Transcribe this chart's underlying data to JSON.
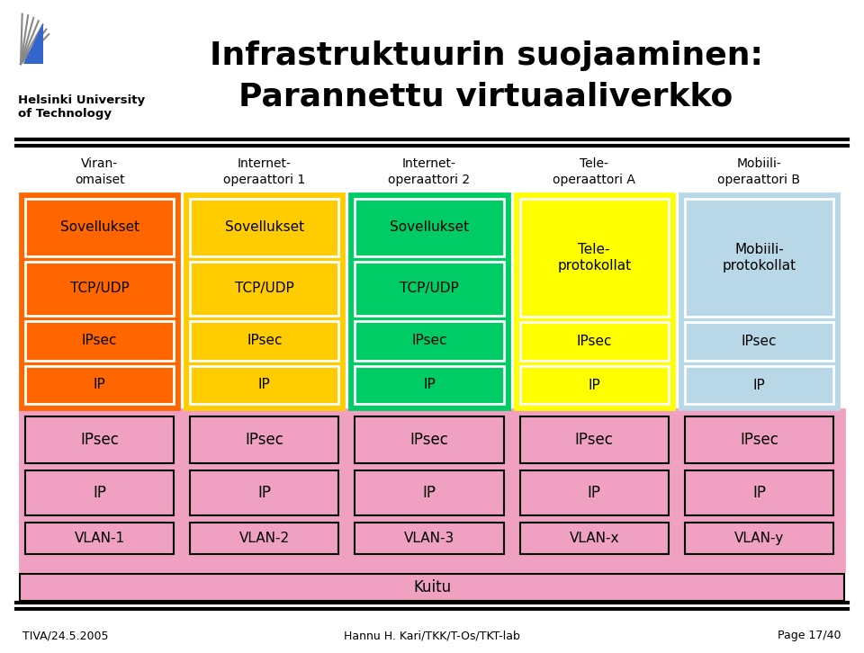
{
  "title_line1": "Infrastruktuurin suojaaminen:",
  "title_line2": "Parannettu virtuaaliverkko",
  "footer_left": "TIVA/24.5.2005",
  "footer_center": "Hannu H. Kari/TKK/T-Os/TKT-lab",
  "footer_right": "Page 17/40",
  "uni_name_line1": "Helsinki University",
  "uni_name_line2": "of Technology",
  "columns": [
    {
      "header_line1": "Viran-",
      "header_line2": "omaiset",
      "bg_color": "#FF6600",
      "rows": [
        "Sovellukset",
        "TCP/UDP",
        "IPsec",
        "IP"
      ],
      "row_count": 4
    },
    {
      "header_line1": "Internet-",
      "header_line2": "operaattori 1",
      "bg_color": "#FFCC00",
      "rows": [
        "Sovellukset",
        "TCP/UDP",
        "IPsec",
        "IP"
      ],
      "row_count": 4
    },
    {
      "header_line1": "Internet-",
      "header_line2": "operaattori 2",
      "bg_color": "#00CC66",
      "rows": [
        "Sovellukset",
        "TCP/UDP",
        "IPsec",
        "IP"
      ],
      "row_count": 4
    },
    {
      "header_line1": "Tele-",
      "header_line2": "operaattori A",
      "bg_color": "#FFFF00",
      "rows": [
        "Tele-\nprotokollat",
        "IPsec",
        "IP"
      ],
      "row_count": 3
    },
    {
      "header_line1": "Mobiili-",
      "header_line2": "operaattori B",
      "bg_color": "#B8D8E8",
      "rows": [
        "Mobiili-\nprotokollat",
        "IPsec",
        "IP"
      ],
      "row_count": 3
    }
  ],
  "bottom_section_bg": "#F0A0C0",
  "vlan_labels": [
    "VLAN-1",
    "VLAN-2",
    "VLAN-3",
    "VLAN-x",
    "VLAN-y"
  ],
  "kuitu_label": "Kuitu",
  "bg_color": "#FFFFFF",
  "line_color": "#000000"
}
